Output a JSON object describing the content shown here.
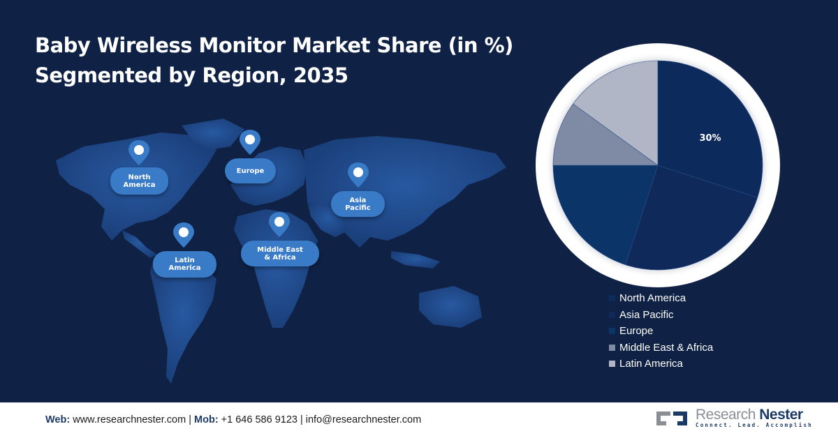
{
  "title": {
    "line1": "Baby Wireless Monitor Market Share (in %)",
    "line2": "Segmented by Region, 2035"
  },
  "map": {
    "regions": [
      {
        "label_line1": "North",
        "label_line2": "America"
      },
      {
        "label_line1": "Europe",
        "label_line2": ""
      },
      {
        "label_line1": "Asia",
        "label_line2": "Pacific"
      },
      {
        "label_line1": "Latin",
        "label_line2": "America"
      },
      {
        "label_line1": "Middle East",
        "label_line2": "& Africa"
      }
    ]
  },
  "chart_data": {
    "type": "pie",
    "title": "Baby Wireless Monitor Market Share (in %) Segmented by Region, 2035",
    "categories": [
      "North America",
      "Asia Pacific",
      "Europe",
      "Middle East & Africa",
      "Latin America"
    ],
    "values": [
      30,
      25,
      20,
      10,
      15
    ],
    "colors": [
      "#0d2a5c",
      "#0f2a5a",
      "#0b3468",
      "#7f8aa5",
      "#b0b6c6"
    ],
    "data_labels": [
      "30%",
      "",
      "",
      "",
      ""
    ],
    "start_angle": "12 o'clock, clockwise",
    "legend_position": "bottom-right"
  },
  "legend": {
    "items": [
      {
        "label": "North America",
        "color": "#0d2a5c"
      },
      {
        "label": "Asia Pacific",
        "color": "#0f2a5a"
      },
      {
        "label": "Europe",
        "color": "#0b3468"
      },
      {
        "label": "Middle East & Africa",
        "color": "#7f8aa5"
      },
      {
        "label": "Latin America",
        "color": "#b0b6c6"
      }
    ]
  },
  "footer": {
    "web_label": "Web:",
    "web_value": " www.researchnester.com | ",
    "mob_label": "Mob:",
    "mob_value": " +1 646 586 9123 | info@researchnester.com",
    "logo_name_a": "Research ",
    "logo_name_b": "Nester",
    "logo_tagline": "Connect. Lead. Accomplish"
  },
  "colors": {
    "background": "#0f2245",
    "bubble": "#3a7bc8",
    "map_land": "#1f4f92"
  }
}
